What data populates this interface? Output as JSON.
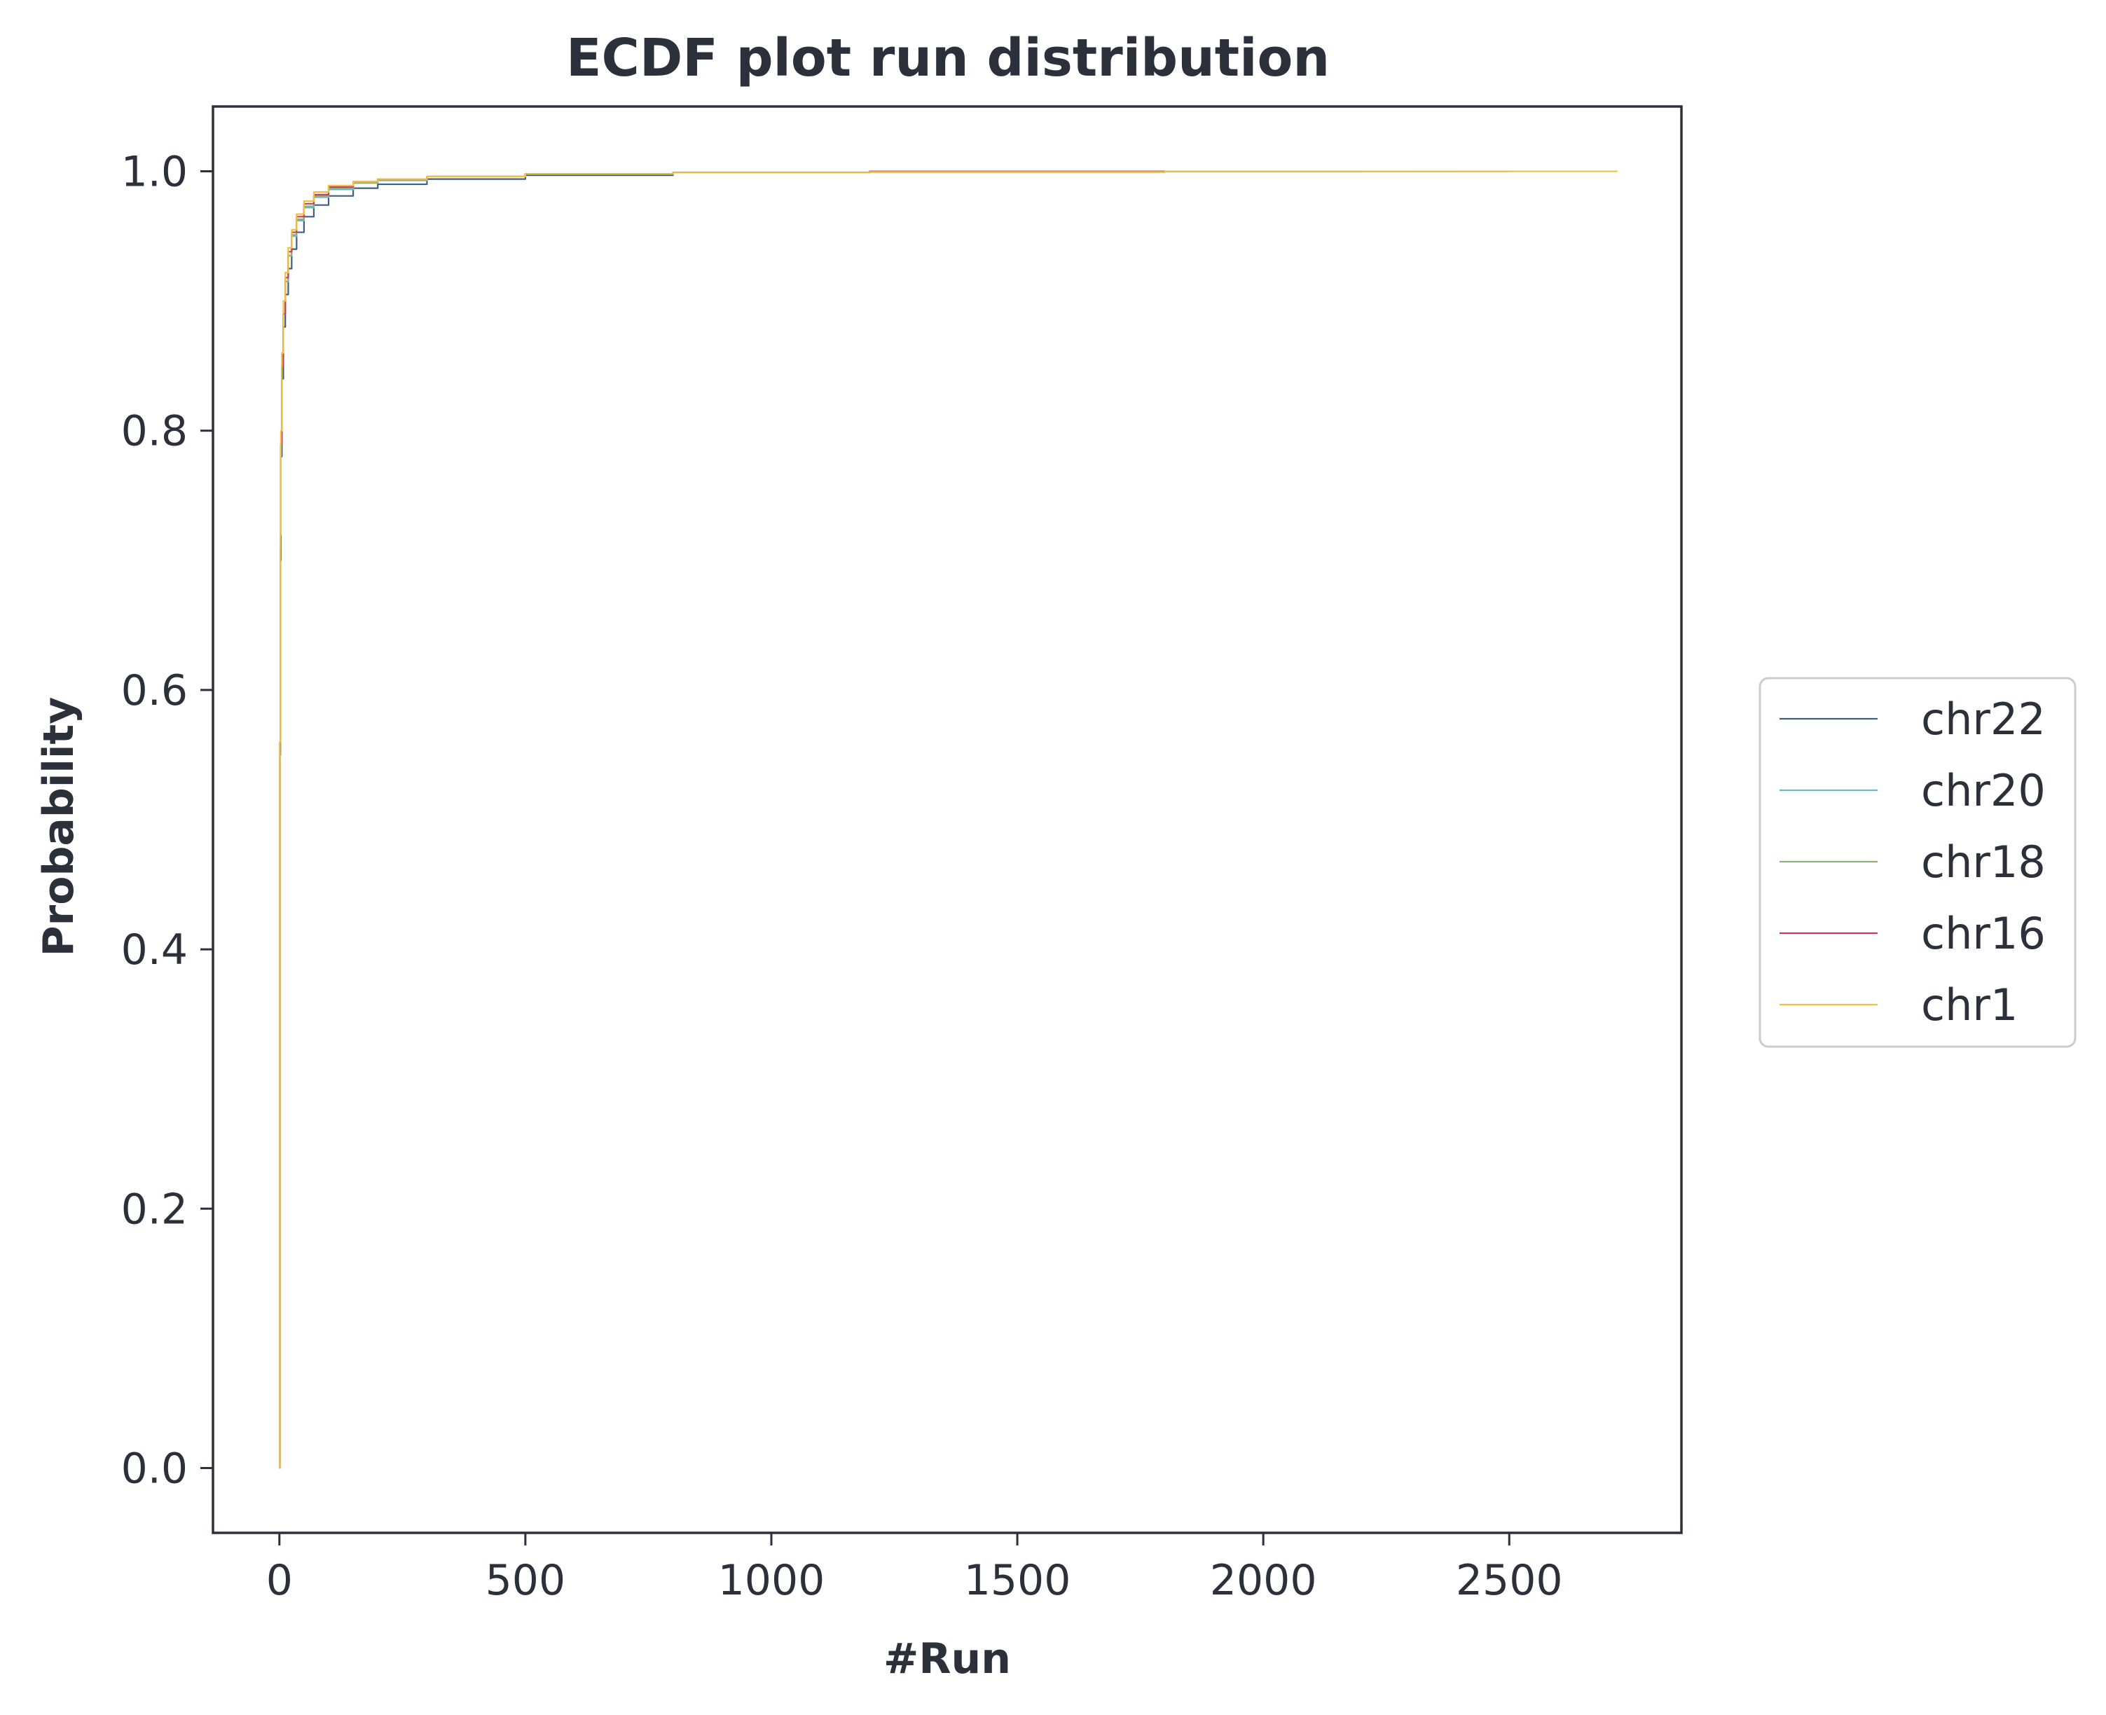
{
  "chart_data": {
    "type": "line",
    "title": "ECDF plot run distribution",
    "xlabel": "#Run",
    "ylabel": "Probability",
    "xlim": [
      -135,
      2850
    ],
    "ylim": [
      -0.05,
      1.05
    ],
    "xticks": [
      0,
      500,
      1000,
      1500,
      2000,
      2500
    ],
    "xtick_labels": [
      "0",
      "500",
      "1000",
      "1500",
      "2000",
      "2500"
    ],
    "yticks": [
      0.0,
      0.2,
      0.4,
      0.6,
      0.8,
      1.0
    ],
    "ytick_labels": [
      "0.0",
      "0.2",
      "0.4",
      "0.6",
      "0.8",
      "1.0"
    ],
    "grid": false,
    "legend_position": "outside-right",
    "series": [
      {
        "name": "chr22",
        "color": "#3f5f7f",
        "x": [
          0,
          1,
          2,
          3,
          5,
          8,
          12,
          18,
          25,
          35,
          50,
          70,
          100,
          150,
          200,
          300,
          500,
          800,
          1200,
          1800,
          2500
        ],
        "y": [
          0.0,
          0.55,
          0.7,
          0.78,
          0.84,
          0.88,
          0.905,
          0.925,
          0.94,
          0.953,
          0.965,
          0.974,
          0.981,
          0.987,
          0.99,
          0.994,
          0.997,
          0.999,
          0.9995,
          1.0,
          1.0
        ]
      },
      {
        "name": "chr20",
        "color": "#6fb6c8",
        "x": [
          0,
          1,
          2,
          3,
          5,
          8,
          12,
          18,
          25,
          35,
          50,
          70,
          100,
          150,
          200,
          300,
          500,
          800,
          1200,
          1800,
          2400
        ],
        "y": [
          0.0,
          0.56,
          0.71,
          0.79,
          0.85,
          0.89,
          0.915,
          0.935,
          0.95,
          0.962,
          0.972,
          0.98,
          0.986,
          0.991,
          0.993,
          0.996,
          0.998,
          0.999,
          1.0,
          1.0,
          1.0
        ]
      },
      {
        "name": "chr18",
        "color": "#8fb07a",
        "x": [
          0,
          1,
          2,
          3,
          5,
          8,
          12,
          18,
          25,
          35,
          50,
          70,
          100,
          150,
          200,
          300,
          500,
          800,
          1200,
          1800,
          2300
        ],
        "y": [
          0.0,
          0.56,
          0.71,
          0.79,
          0.85,
          0.89,
          0.915,
          0.935,
          0.951,
          0.963,
          0.973,
          0.981,
          0.987,
          0.991,
          0.994,
          0.996,
          0.998,
          0.999,
          1.0,
          1.0,
          1.0
        ]
      },
      {
        "name": "chr16",
        "color": "#c0405f",
        "x": [
          0,
          1,
          2,
          3,
          5,
          8,
          12,
          18,
          25,
          35,
          50,
          70,
          100,
          150,
          200,
          300,
          500,
          800,
          1200,
          1800,
          2200
        ],
        "y": [
          0.0,
          0.56,
          0.71,
          0.79,
          0.85,
          0.89,
          0.918,
          0.938,
          0.953,
          0.965,
          0.975,
          0.982,
          0.988,
          0.992,
          0.994,
          0.996,
          0.998,
          0.999,
          1.0,
          1.0,
          1.0
        ]
      },
      {
        "name": "chr1",
        "color": "#f0c040",
        "x": [
          0,
          1,
          2,
          3,
          5,
          8,
          12,
          18,
          25,
          35,
          50,
          70,
          100,
          150,
          200,
          300,
          500,
          800,
          1200,
          1800,
          2500,
          2720
        ],
        "y": [
          0.0,
          0.56,
          0.72,
          0.8,
          0.86,
          0.9,
          0.922,
          0.941,
          0.955,
          0.967,
          0.977,
          0.984,
          0.989,
          0.992,
          0.994,
          0.996,
          0.998,
          0.999,
          0.9995,
          1.0,
          1.0,
          1.0
        ]
      }
    ]
  }
}
